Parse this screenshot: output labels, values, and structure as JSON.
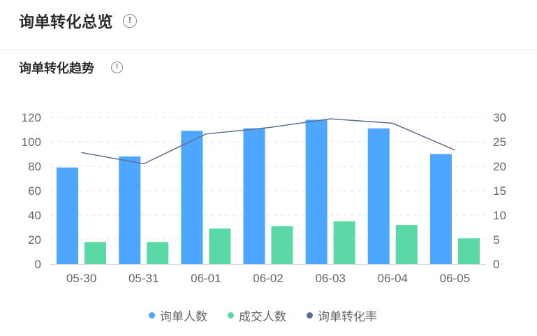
{
  "header": {
    "title": "询单转化总览",
    "info_icon": "info-circle-icon"
  },
  "section": {
    "title": "询单转化趋势",
    "info_icon": "info-circle-icon"
  },
  "chart_data": {
    "type": "bar",
    "categories": [
      "05-30",
      "05-31",
      "06-01",
      "06-02",
      "06-03",
      "06-04",
      "06-05"
    ],
    "series": [
      {
        "name": "询单人数",
        "type": "bar",
        "axis": "left",
        "color": "#4da6ff",
        "values": [
          79,
          88,
          109,
          111,
          118,
          111,
          90
        ]
      },
      {
        "name": "成交人数",
        "type": "bar",
        "axis": "left",
        "color": "#5ad8a6",
        "values": [
          18,
          18,
          29,
          31,
          35,
          32,
          21
        ]
      },
      {
        "name": "询单转化率",
        "type": "line",
        "axis": "right",
        "color": "#5d7092",
        "values": [
          22.8,
          20.5,
          26.6,
          27.9,
          29.7,
          28.8,
          23.3
        ]
      }
    ],
    "y_left": {
      "ticks": [
        0,
        20,
        40,
        60,
        80,
        100,
        120
      ],
      "range": [
        0,
        120
      ]
    },
    "y_right": {
      "ticks": [
        0,
        5,
        10,
        15,
        20,
        25,
        30
      ],
      "range": [
        0,
        30
      ]
    },
    "grid": true,
    "legend_position": "bottom"
  }
}
